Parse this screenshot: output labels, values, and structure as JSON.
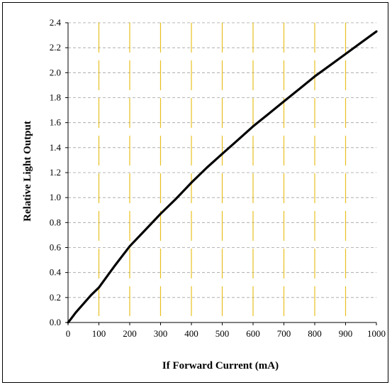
{
  "chart_data": {
    "type": "line",
    "title": "",
    "xlabel": "If Forward Current (mA)",
    "ylabel": "Relative Light Output",
    "xlim": [
      0,
      1000
    ],
    "ylim": [
      0,
      2.4
    ],
    "x_ticks": [
      "0",
      "100",
      "200",
      "300",
      "400",
      "500",
      "600",
      "700",
      "800",
      "900",
      "1000"
    ],
    "y_ticks": [
      "0.0",
      "0.2",
      "0.4",
      "0.6",
      "0.8",
      "1.0",
      "1.2",
      "1.4",
      "1.6",
      "1.8",
      "2.0",
      "2.2",
      "2.4"
    ],
    "grid": true,
    "legend": "none",
    "colors": {
      "line": "#000000",
      "v_grid": "#e8c020",
      "h_grid": "#a0a0a0"
    },
    "series": [
      {
        "x": [
          0,
          10,
          25,
          50,
          75,
          100,
          150,
          200,
          250,
          300,
          350,
          400,
          450,
          500,
          550,
          600,
          650,
          700,
          750,
          800,
          850,
          900,
          950,
          1000
        ],
        "y": [
          0.0,
          0.03,
          0.08,
          0.15,
          0.22,
          0.28,
          0.45,
          0.61,
          0.74,
          0.87,
          0.99,
          1.12,
          1.24,
          1.35,
          1.46,
          1.57,
          1.67,
          1.77,
          1.87,
          1.97,
          2.06,
          2.15,
          2.24,
          2.33
        ]
      }
    ]
  }
}
